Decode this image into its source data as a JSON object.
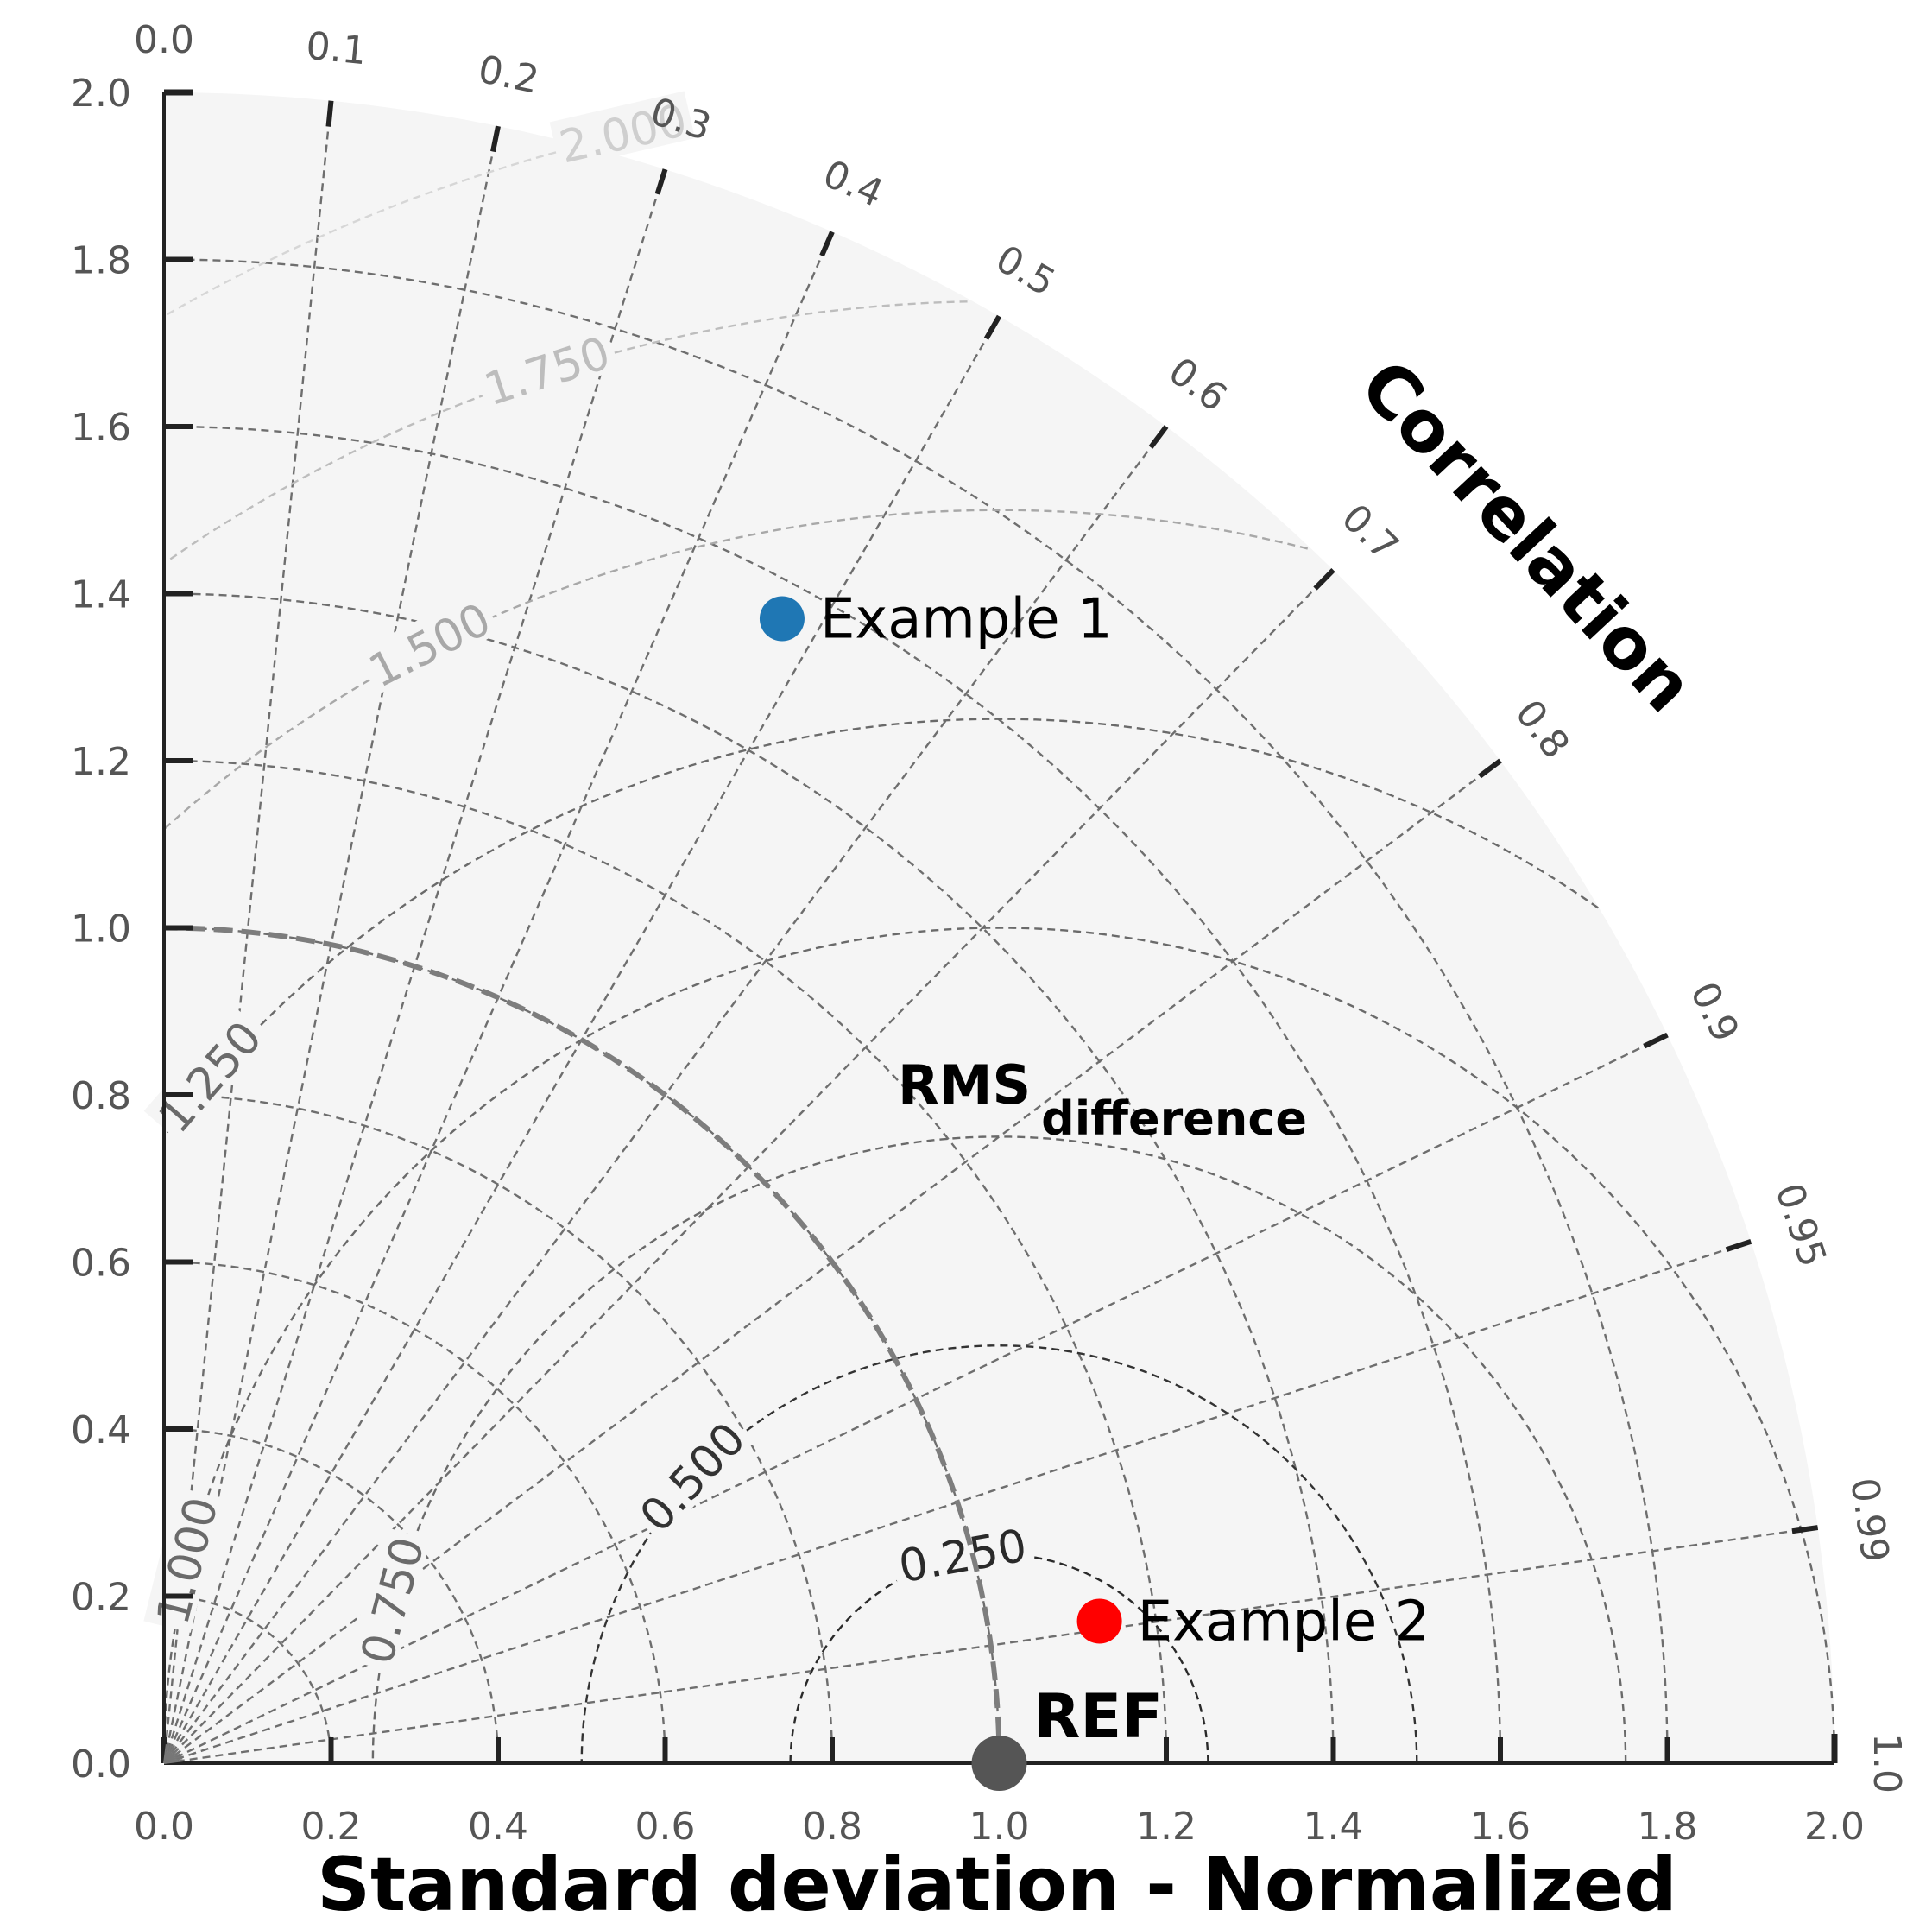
{
  "chart_data": {
    "type": "scatter",
    "subtype": "taylor-diagram",
    "title": "",
    "xlabel": "Standard deviation - Normalized",
    "angular_label": "Correlation",
    "rms_label_main": "RMS",
    "rms_label_sub": "difference",
    "std_range": [
      0,
      2
    ],
    "std_ticks": [
      "0.0",
      "0.2",
      "0.4",
      "0.6",
      "0.8",
      "1.0",
      "1.2",
      "1.4",
      "1.6",
      "1.8",
      "2.0"
    ],
    "correlation_ticks": [
      "0.0",
      "0.1",
      "0.2",
      "0.3",
      "0.4",
      "0.5",
      "0.6",
      "0.7",
      "0.8",
      "0.9",
      "0.95",
      "0.99",
      "1.0"
    ],
    "rms_contours": [
      "0.250",
      "0.500",
      "0.750",
      "1.000",
      "1.250",
      "1.500",
      "1.750",
      "2.000"
    ],
    "reference": {
      "label": "REF",
      "std": 1.0,
      "correlation": 1.0,
      "color": "#555555"
    },
    "points": [
      {
        "name": "Example 1",
        "x": 0.74,
        "y": 1.37,
        "color": "#1f77b4"
      },
      {
        "name": "Example 2",
        "x": 1.12,
        "y": 0.17,
        "color": "#ff0000"
      }
    ],
    "grid": true,
    "background": "#f5f5f5"
  }
}
